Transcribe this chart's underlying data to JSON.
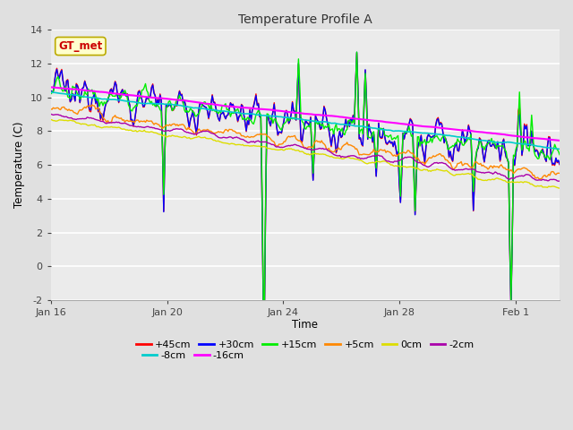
{
  "title": "Temperature Profile A",
  "xlabel": "Time",
  "ylabel": "Temperature (C)",
  "annotation": "GT_met",
  "ylim": [
    -2,
    14
  ],
  "xlim_days": [
    0,
    17.5
  ],
  "x_ticks_labels": [
    "Jan 16",
    "Jan 20",
    "Jan 24",
    "Jan 28",
    "Feb 1"
  ],
  "x_ticks_days": [
    0,
    4,
    8,
    12,
    16
  ],
  "y_ticks": [
    -2,
    0,
    2,
    4,
    6,
    8,
    10,
    12,
    14
  ],
  "series": [
    {
      "label": "+45cm",
      "color": "#ff0000",
      "lw": 1.0
    },
    {
      "label": "+30cm",
      "color": "#0000ff",
      "lw": 1.0
    },
    {
      "label": "+15cm",
      "color": "#00ee00",
      "lw": 1.0
    },
    {
      "label": "+5cm",
      "color": "#ff8800",
      "lw": 1.0
    },
    {
      "label": "0cm",
      "color": "#dddd00",
      "lw": 1.0
    },
    {
      "label": "-2cm",
      "color": "#aa00aa",
      "lw": 1.0
    },
    {
      "label": "-8cm",
      "color": "#00cccc",
      "lw": 1.2
    },
    {
      "label": "-16cm",
      "color": "#ff00ff",
      "lw": 1.5
    }
  ],
  "bg_color": "#e0e0e0",
  "plot_bg_color": "#ebebeb",
  "legend_row1_ncol": 6,
  "legend_row2_ncol": 2,
  "legend_fontsize": 8.0
}
